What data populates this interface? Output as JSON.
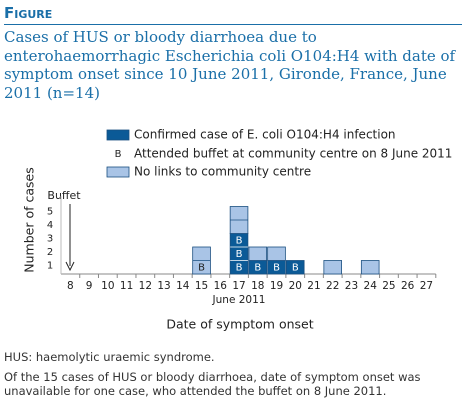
{
  "header": "Figure",
  "chart_data": {
    "type": "stacked_units",
    "title": "Cases of HUS or bloody diarrhoea due to enterohaemorrhagic Escherichia coli O104:H4 with date of symptom onset since 10 June 2011, Gironde, France, June 2011 (n=14)",
    "categories": [
      "8",
      "9",
      "10",
      "11",
      "12",
      "13",
      "14",
      "15",
      "16",
      "17",
      "18",
      "19",
      "20",
      "21",
      "22",
      "23",
      "24",
      "25",
      "26",
      "27"
    ],
    "x_sublabel": "June 2011",
    "x_label": "Date of symptom onset",
    "y_label": "Number of cases",
    "series": [
      {
        "name": "Confirmed case of E. coli O104:H4 infection",
        "color": "#0b5a97",
        "values": [
          0,
          0,
          0,
          0,
          0,
          0,
          0,
          0,
          0,
          3,
          1,
          1,
          1,
          0,
          0,
          0,
          0,
          0,
          0,
          0
        ]
      },
      {
        "name": "No links to community centre",
        "color": "#a9c4e6",
        "values": [
          0,
          0,
          0,
          0,
          0,
          0,
          0,
          2,
          0,
          2,
          1,
          1,
          0,
          0,
          1,
          0,
          1,
          0,
          0,
          0
        ]
      }
    ],
    "marker": {
      "label": "B",
      "name": "Attended buffet at community centre on 8 June 2011",
      "values": [
        0,
        0,
        0,
        0,
        0,
        0,
        0,
        1,
        0,
        3,
        1,
        1,
        1,
        0,
        0,
        0,
        0,
        0,
        0,
        0
      ]
    },
    "annotation": "Buffet",
    "ylim": [
      0,
      6.5
    ],
    "yticks": [
      1,
      2,
      3,
      4,
      5
    ]
  },
  "footnotes": [
    "HUS: haemolytic uraemic syndrome.",
    "Of the 15 cases of HUS or bloody diarrhoea, date of symptom onset was unavailable for one case, who attended the buffet on 8 June 2011."
  ]
}
